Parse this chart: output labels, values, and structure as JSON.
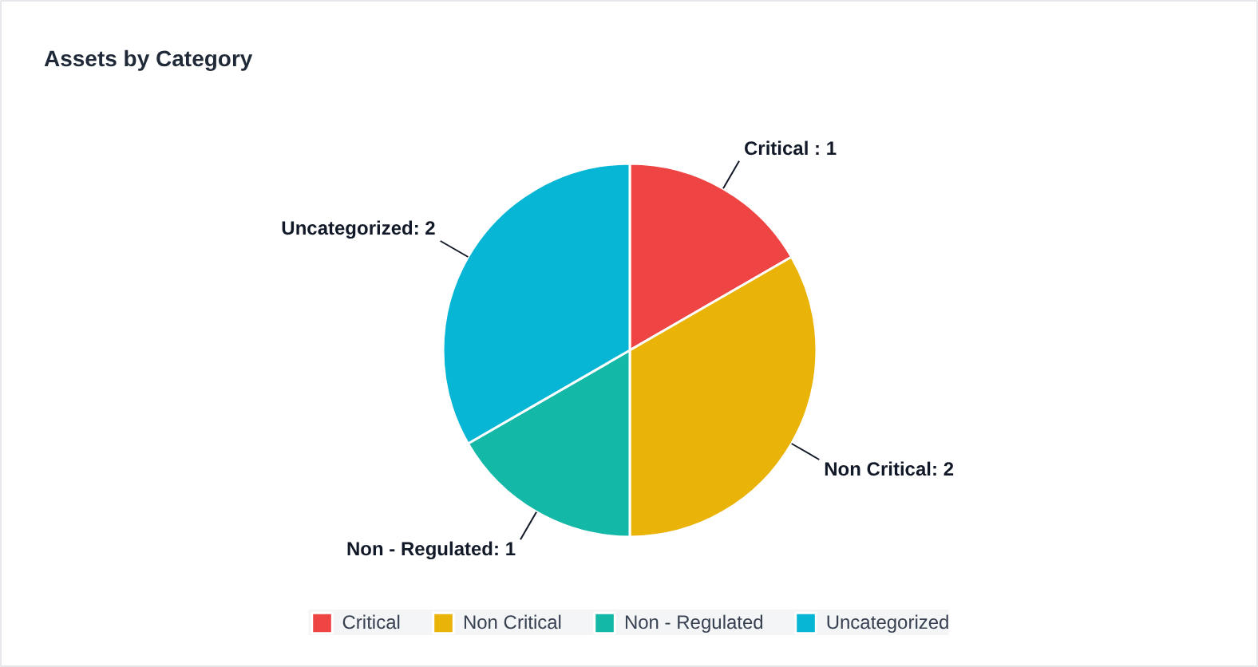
{
  "chart_data": {
    "type": "pie",
    "title": "Assets by Category",
    "categories": [
      "Critical",
      "Non Critical",
      "Non - Regulated",
      "Uncategorized"
    ],
    "values": [
      1,
      2,
      1,
      2
    ],
    "colors": [
      "#ef4444",
      "#eab308",
      "#14b8a6",
      "#06b6d4"
    ],
    "value_labels": [
      "Critical : 1",
      "Non Critical: 2",
      "Non - Regulated: 1",
      "Uncategorized: 2"
    ],
    "legend": "bottom"
  }
}
